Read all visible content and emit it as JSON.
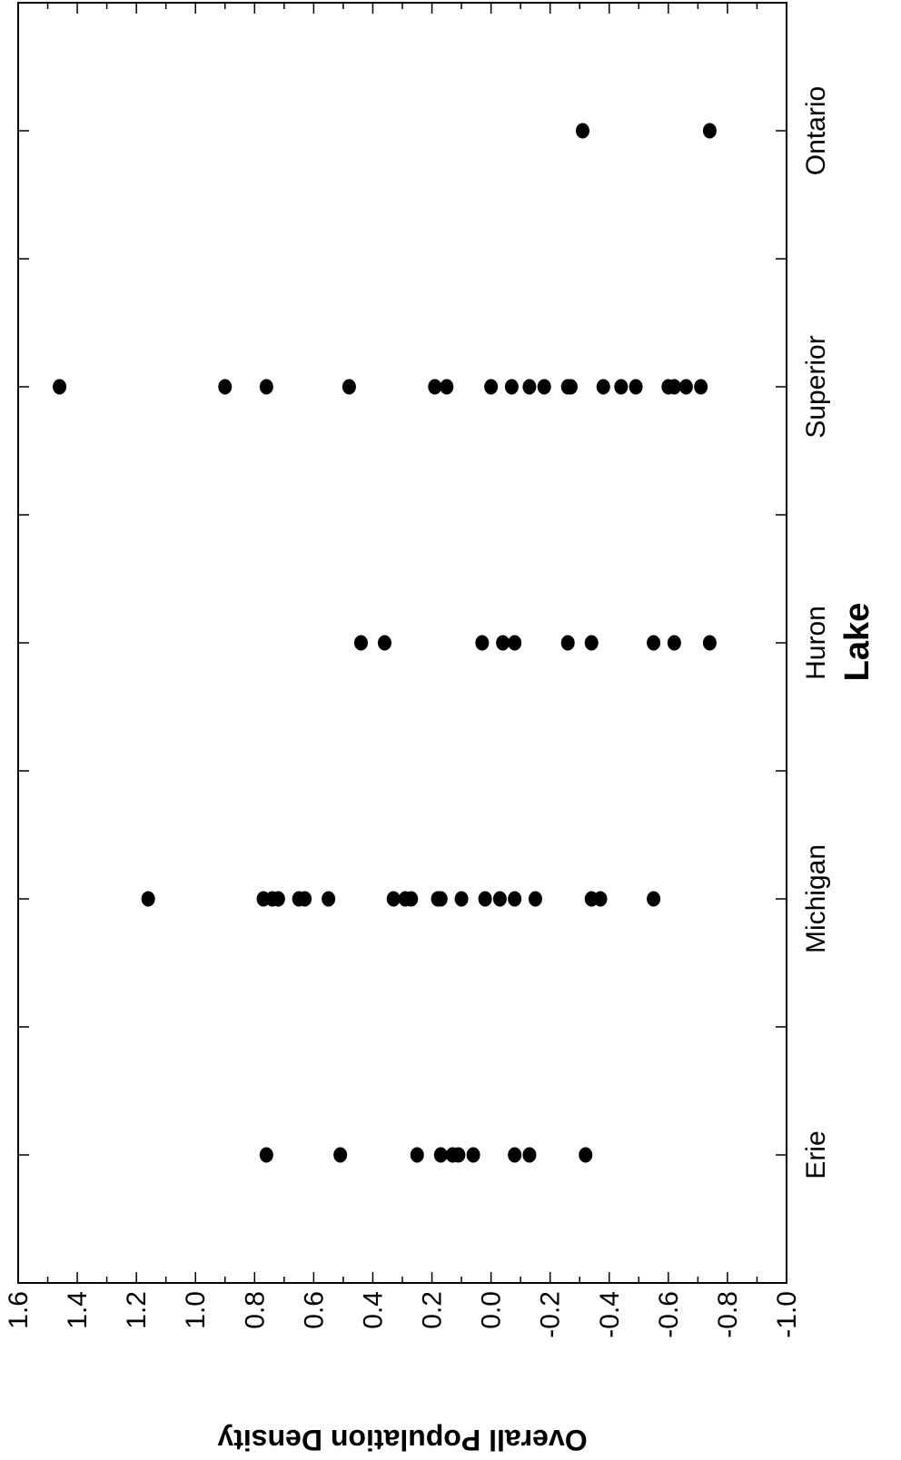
{
  "chart_data": {
    "type": "scatter",
    "orientation": "rotated-90",
    "xlabel": "Lake",
    "ylabel": "Overall Population Density",
    "categories": [
      "Erie",
      "Michigan",
      "Huron",
      "Superior",
      "Ontario"
    ],
    "ylim": [
      -1.0,
      1.6
    ],
    "yticks": [
      "1.6",
      "1.4",
      "1.2",
      "1.0",
      "0.8",
      "0.6",
      "0.4",
      "0.2",
      "0.0",
      "-0.2",
      "-0.4",
      "-0.6",
      "-0.8",
      "-1.0"
    ],
    "grid": false,
    "legend": "none",
    "series": [
      {
        "values": {
          "Erie": [
            0.76,
            0.51,
            0.25,
            0.17,
            0.13,
            0.11,
            0.06,
            -0.08,
            -0.13,
            -0.32
          ],
          "Michigan": [
            1.16,
            0.77,
            0.74,
            0.72,
            0.65,
            0.63,
            0.55,
            0.33,
            0.29,
            0.27,
            0.18,
            0.17,
            0.1,
            0.02,
            -0.03,
            -0.08,
            -0.15,
            -0.34,
            -0.37,
            -0.55
          ],
          "Huron": [
            0.44,
            0.36,
            0.03,
            -0.04,
            -0.08,
            -0.26,
            -0.34,
            -0.55,
            -0.62,
            -0.74
          ],
          "Superior": [
            1.46,
            0.9,
            0.76,
            0.48,
            0.19,
            0.15,
            0.0,
            -0.07,
            -0.13,
            -0.18,
            -0.26,
            -0.27,
            -0.38,
            -0.44,
            -0.49,
            -0.6,
            -0.62,
            -0.66,
            -0.71
          ],
          "Ontario": [
            -0.31,
            -0.74
          ]
        }
      }
    ]
  }
}
